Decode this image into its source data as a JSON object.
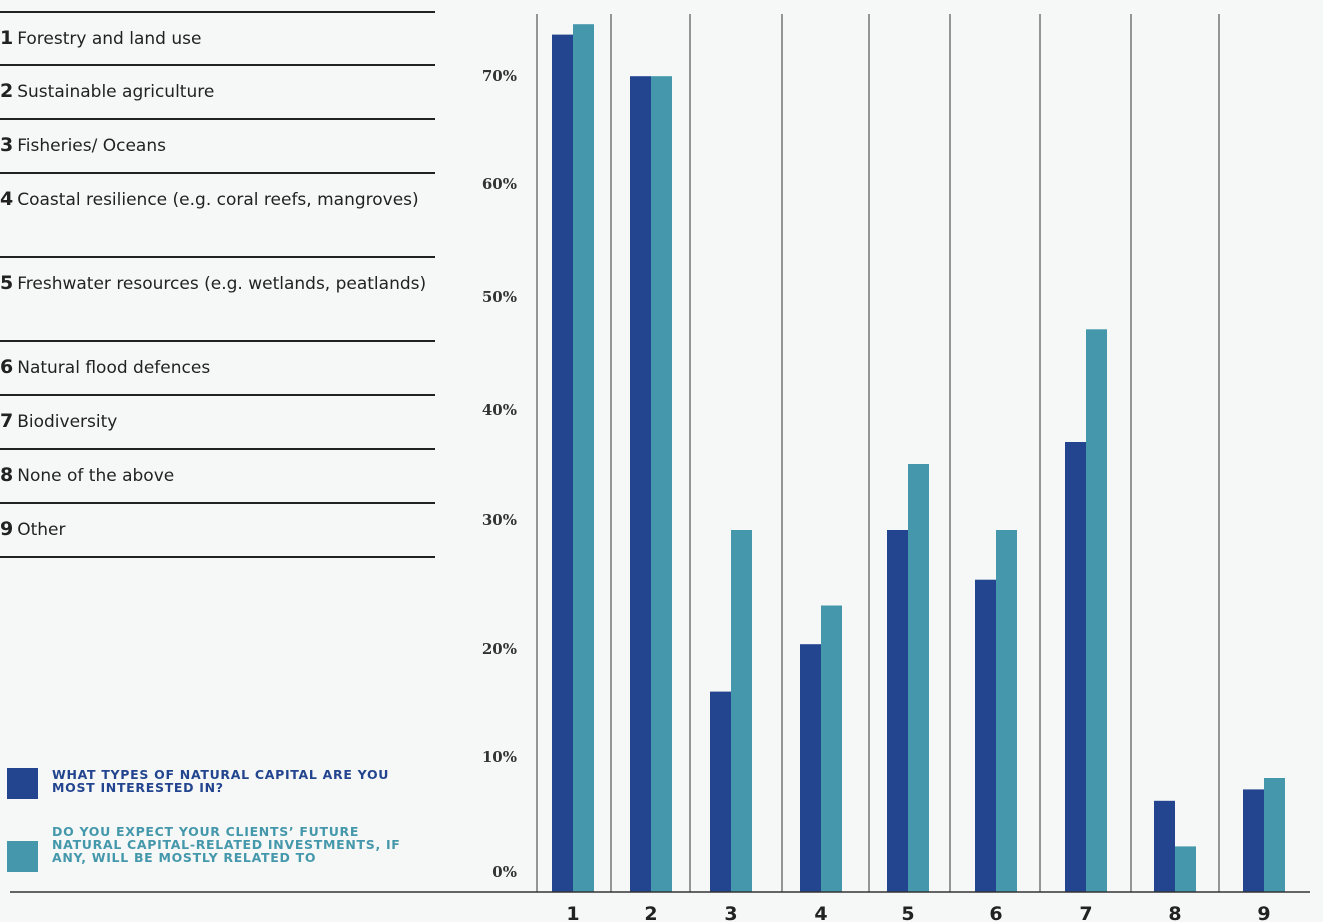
{
  "categories": [
    {
      "num": "1",
      "label": "Forestry and land use"
    },
    {
      "num": "2",
      "label": "Sustainable agriculture"
    },
    {
      "num": "3",
      "label": "Fisheries/ Oceans"
    },
    {
      "num": "4",
      "label": "Coastal resilience (e.g. coral reefs, mangroves)"
    },
    {
      "num": "5",
      "label": "Freshwater resources (e.g. wetlands, peatlands)"
    },
    {
      "num": "6",
      "label": "Natural flood defences"
    },
    {
      "num": "7",
      "label": "Biodiversity"
    },
    {
      "num": "8",
      "label": "None of the above"
    },
    {
      "num": "9",
      "label": "Other"
    }
  ],
  "legend": [
    {
      "label": "WHAT TYPES OF NATURAL CAPITAL ARE YOU MOST INTERESTED IN?",
      "color": "#23458f"
    },
    {
      "label": "DO YOU EXPECT YOUR CLIENTS’ FUTURE NATURAL CAPITAL-RELATED INVESTMENTS, IF ANY, WILL BE MOSTLY RELATED TO",
      "color": "#4598ab"
    }
  ],
  "chart_data": {
    "type": "bar",
    "categories": [
      "1",
      "2",
      "3",
      "4",
      "5",
      "6",
      "7",
      "8",
      "9"
    ],
    "series": [
      {
        "name": "WHAT TYPES OF NATURAL CAPITAL ARE YOU MOST INTERESTED IN?",
        "color": "#23458f",
        "values": [
          76,
          72,
          18,
          22,
          31,
          27,
          39,
          8,
          9
        ]
      },
      {
        "name": "DO YOU EXPECT YOUR CLIENTS’ FUTURE NATURAL CAPITAL-RELATED INVESTMENTS, IF ANY, WILL BE MOSTLY RELATED TO",
        "color": "#4598ab",
        "values": [
          77,
          72,
          31,
          25,
          37,
          31,
          49,
          4,
          10
        ]
      }
    ],
    "yticks": [
      "0%",
      "10%",
      "20%",
      "30%",
      "40%",
      "50%",
      "60%",
      "70%"
    ],
    "ylim": [
      0,
      80
    ],
    "xlabel": "",
    "ylabel": "",
    "grid": "vertical separators"
  }
}
